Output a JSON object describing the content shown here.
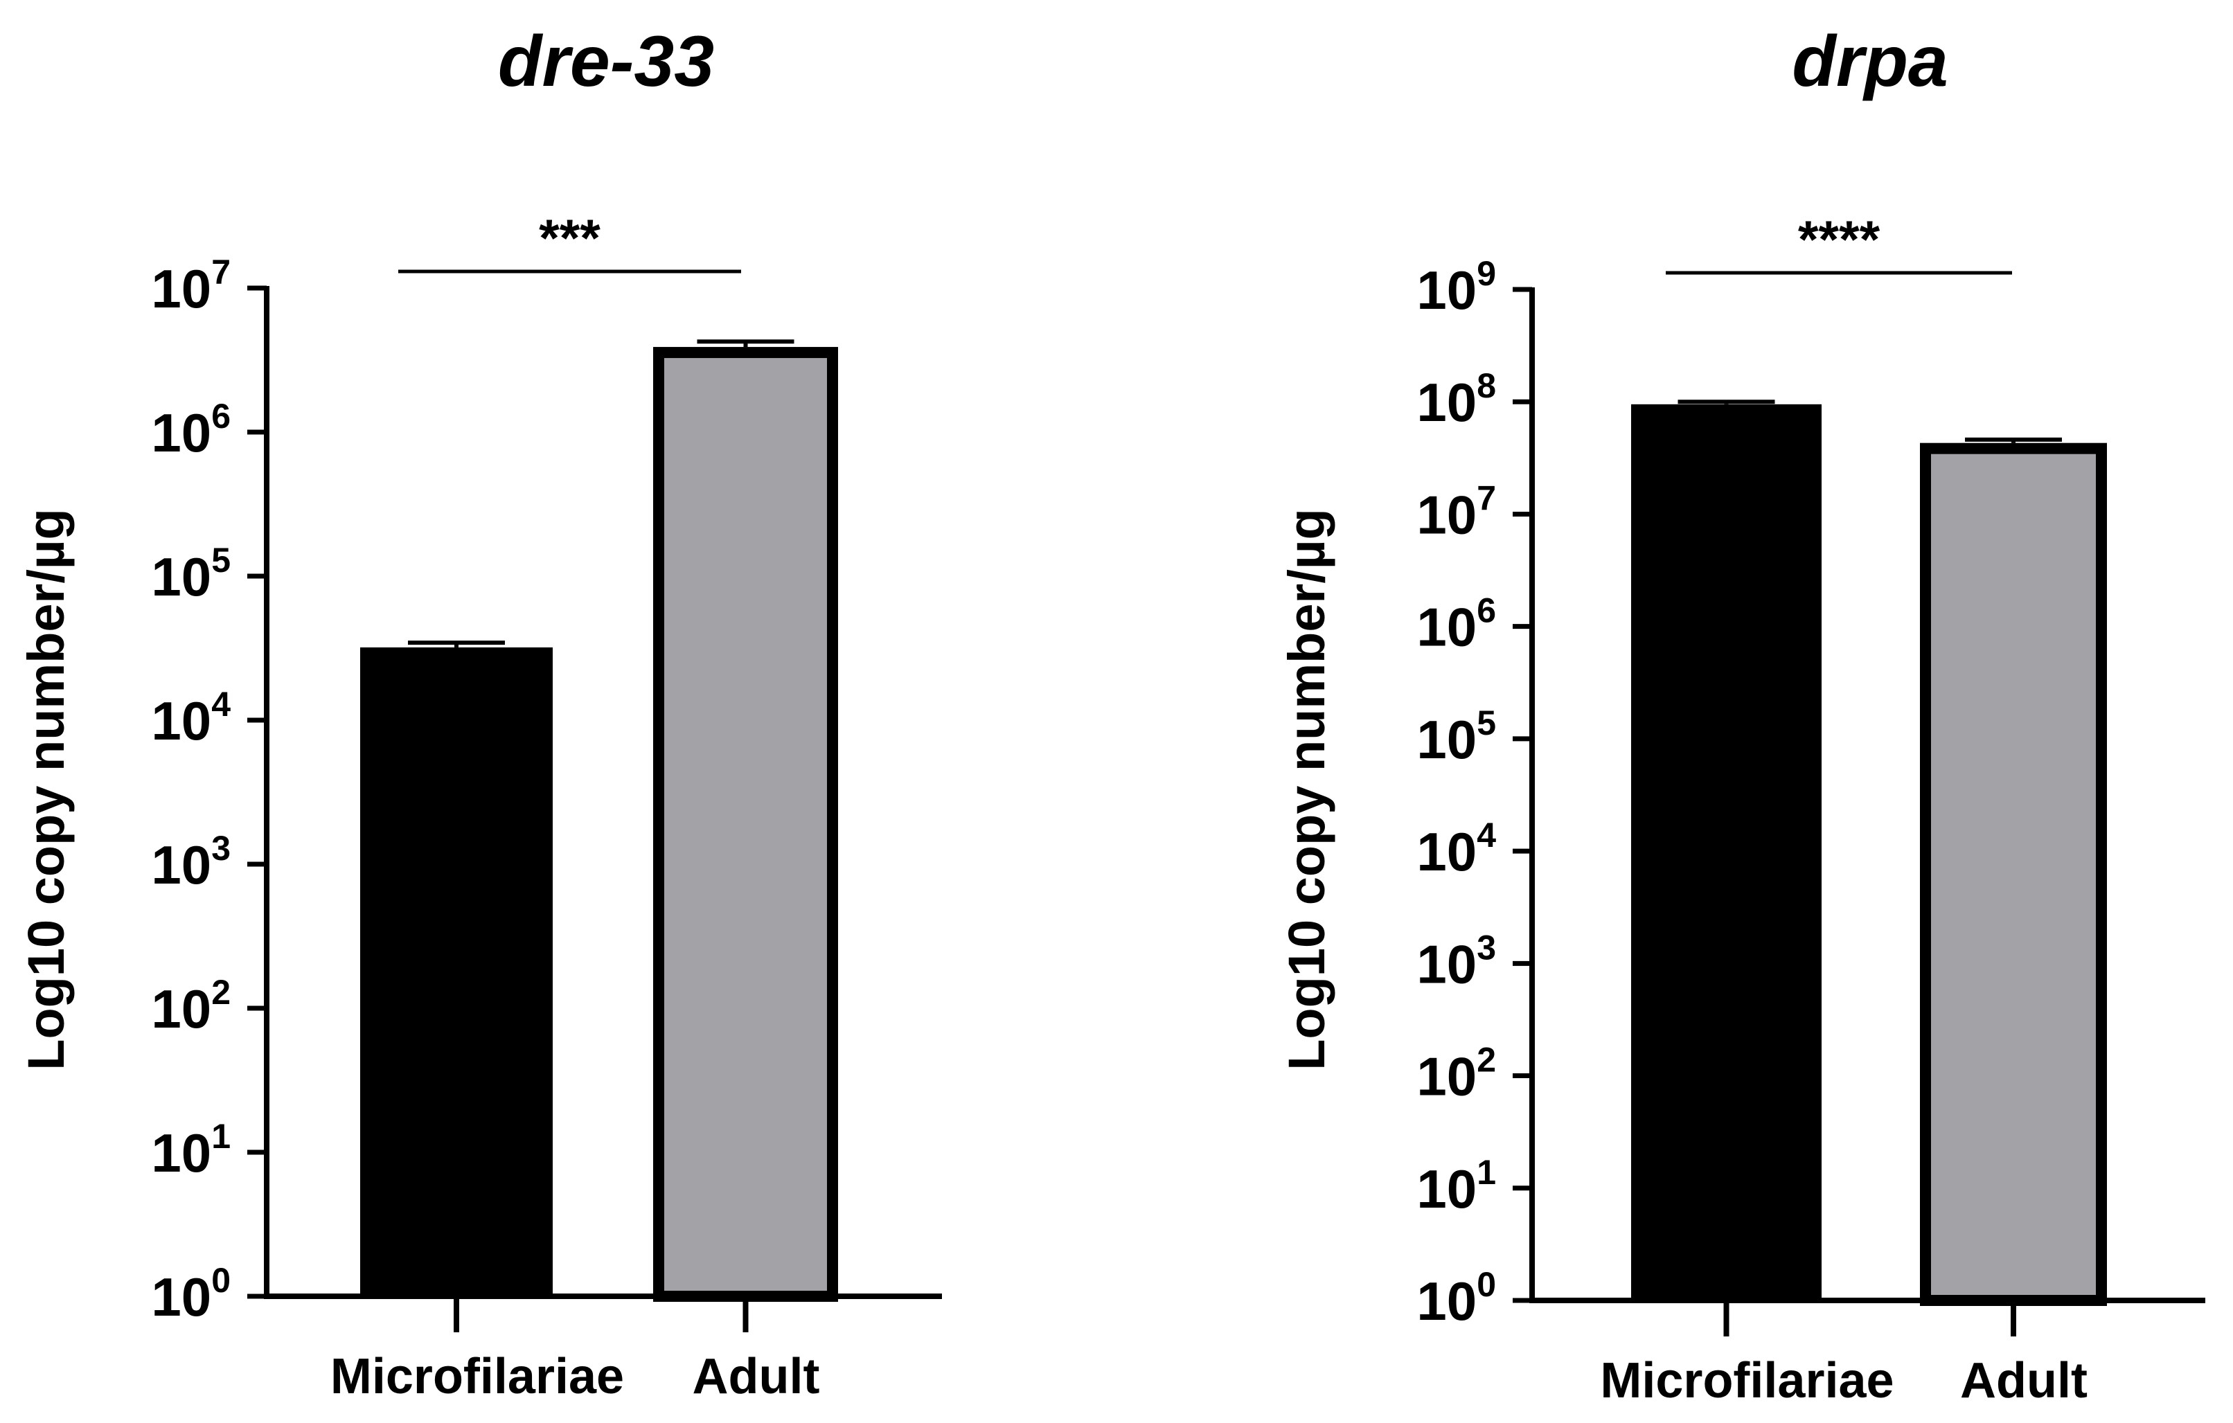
{
  "chart_data": [
    {
      "type": "bar",
      "title": "dre-33",
      "ylabel": "Log10 copy number/µg",
      "xlabel": "",
      "yscale": "log",
      "ylim": [
        1,
        10000000
      ],
      "y_ticks": [
        {
          "base": "10",
          "exp": "0",
          "value": 1
        },
        {
          "base": "10",
          "exp": "1",
          "value": 10
        },
        {
          "base": "10",
          "exp": "2",
          "value": 100
        },
        {
          "base": "10",
          "exp": "3",
          "value": 1000
        },
        {
          "base": "10",
          "exp": "4",
          "value": 10000
        },
        {
          "base": "10",
          "exp": "5",
          "value": 100000
        },
        {
          "base": "10",
          "exp": "6",
          "value": 1000000
        },
        {
          "base": "10",
          "exp": "7",
          "value": 10000000
        }
      ],
      "categories": [
        "Microfilariae",
        "Adult"
      ],
      "values": [
        32000,
        3900000
      ],
      "errors": [
        2500,
        350000
      ],
      "colors": [
        "#000000",
        "#a3a3a7"
      ],
      "significance": "***"
    },
    {
      "type": "bar",
      "title": "drpa",
      "ylabel": "Log10 copy number/µg",
      "xlabel": "",
      "yscale": "log",
      "ylim": [
        1,
        1000000000
      ],
      "y_ticks": [
        {
          "base": "10",
          "exp": "0",
          "value": 1
        },
        {
          "base": "10",
          "exp": "1",
          "value": 10
        },
        {
          "base": "10",
          "exp": "2",
          "value": 100
        },
        {
          "base": "10",
          "exp": "3",
          "value": 1000
        },
        {
          "base": "10",
          "exp": "4",
          "value": 10000
        },
        {
          "base": "10",
          "exp": "5",
          "value": 100000
        },
        {
          "base": "10",
          "exp": "6",
          "value": 1000000
        },
        {
          "base": "10",
          "exp": "7",
          "value": 10000000
        },
        {
          "base": "10",
          "exp": "8",
          "value": 100000000
        },
        {
          "base": "10",
          "exp": "9",
          "value": 1000000000
        }
      ],
      "categories": [
        "Microfilariae",
        "Adult"
      ],
      "values": [
        95000000,
        43000000
      ],
      "errors": [
        5000000,
        3000000
      ],
      "colors": [
        "#000000",
        "#a3a3a7"
      ],
      "significance": "****"
    }
  ]
}
